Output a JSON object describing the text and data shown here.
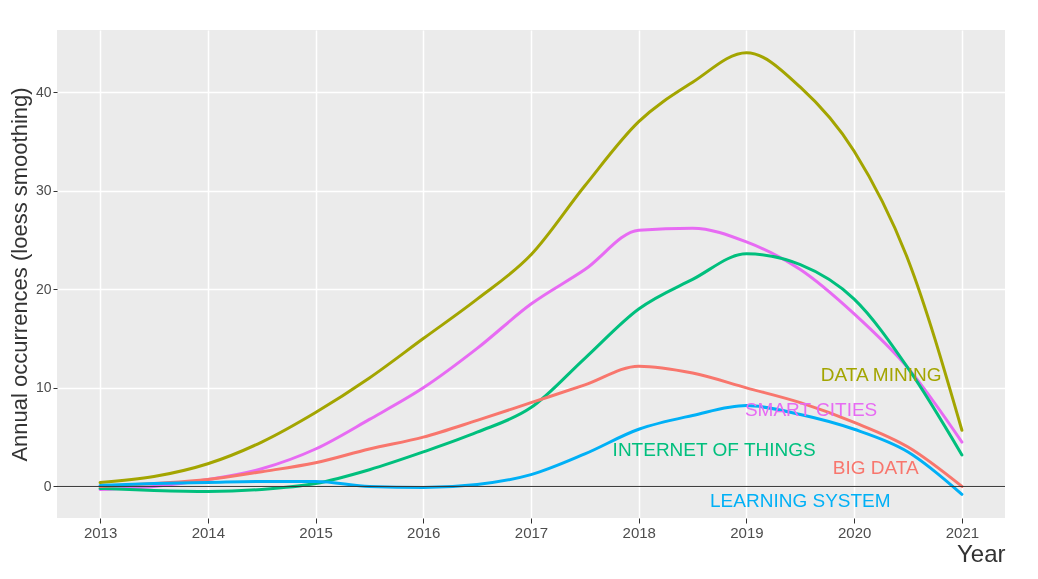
{
  "chart_data": {
    "type": "line",
    "xlabel": "Year",
    "ylabel": "Annual occurrences (loess smoothing)",
    "x": [
      2013,
      2013.5,
      2014,
      2014.5,
      2015,
      2015.5,
      2016,
      2016.5,
      2017,
      2017.5,
      2018,
      2018.5,
      2019,
      2019.5,
      2020,
      2020.5,
      2021
    ],
    "series": [
      {
        "name": "DATA MINING",
        "color": "#a3a500",
        "values": [
          0.4,
          1.0,
          2.3,
          4.5,
          7.5,
          11,
          15,
          19,
          23.5,
          30.5,
          37,
          41,
          44,
          40.5,
          34,
          23,
          5.7
        ]
      },
      {
        "name": "SMART CITIES",
        "color": "#e76bf3",
        "values": [
          -0.3,
          0,
          0.7,
          1.8,
          3.8,
          6.8,
          10,
          14,
          18.5,
          22,
          26,
          26.2,
          24.8,
          22,
          17.5,
          12,
          4.5
        ]
      },
      {
        "name": "INTERNET OF THINGS",
        "color": "#00bf7d",
        "values": [
          -0.2,
          -0.4,
          -0.5,
          -0.3,
          0.3,
          1.7,
          3.5,
          5.5,
          8,
          13,
          18,
          21,
          23.6,
          22.5,
          19,
          12,
          3.2
        ]
      },
      {
        "name": "BIG DATA",
        "color": "#f8766d",
        "values": [
          0,
          0.3,
          0.7,
          1.5,
          2.4,
          3.8,
          5,
          6.7,
          8.5,
          10.3,
          12.2,
          11.5,
          10,
          8.5,
          6.5,
          4,
          0
        ]
      },
      {
        "name": "LEARNING SYSTEM",
        "color": "#00b0f6",
        "values": [
          0.1,
          0.3,
          0.4,
          0.5,
          0.5,
          0,
          -0.1,
          0.2,
          1.2,
          3.3,
          5.8,
          7.2,
          8.2,
          7.3,
          5.8,
          3.5,
          -0.8
        ]
      }
    ],
    "xlim": [
      2012.6,
      2021.4
    ],
    "xticks": [
      2013,
      2014,
      2015,
      2016,
      2017,
      2018,
      2019,
      2020,
      2021
    ],
    "ylim": [
      -3.2,
      46.3
    ],
    "yticks": [
      0,
      10,
      20,
      30,
      40
    ],
    "grid": true,
    "ref_lines": [
      {
        "axis": "y",
        "value": 0,
        "color": "#333333"
      }
    ]
  }
}
